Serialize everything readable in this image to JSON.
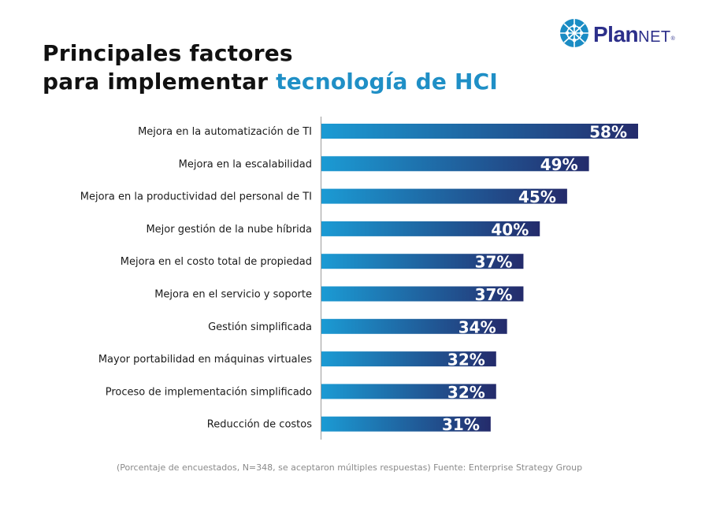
{
  "title": {
    "line1": "Principales factores",
    "line2_prefix": "para implementar ",
    "line2_accent": "tecnología de HCI"
  },
  "logo": {
    "plan": "Plan",
    "net": "NET",
    "reg": "®"
  },
  "colors": {
    "title_accent": "#1f8fc6",
    "bar_gradient_start": "#1b9bd4",
    "bar_gradient_end": "#242b6b",
    "logo_primary": "#2c2f8a",
    "logo_globe": "#1a8cc4"
  },
  "chart_data": {
    "type": "bar",
    "orientation": "horizontal",
    "categories": [
      "Mejora en la automatización de TI",
      "Mejora en la escalabilidad",
      "Mejora en la productividad del personal de TI",
      "Mejor gestión de la nube híbrida",
      "Mejora en el costo total de propiedad",
      "Mejora en el servicio y soporte",
      "Gestión simplificada",
      "Mayor portabilidad en máquinas virtuales",
      "Proceso de implementación simplificado",
      "Reducción de costos"
    ],
    "values": [
      58,
      49,
      45,
      40,
      37,
      37,
      34,
      32,
      32,
      31
    ],
    "value_labels": [
      "58%",
      "49%",
      "45%",
      "40%",
      "37%",
      "37%",
      "34%",
      "32%",
      "32%",
      "31%"
    ],
    "unit": "%",
    "xlim": [
      0,
      58
    ],
    "grid": false,
    "legend": "none"
  },
  "footnote": "(Porcentaje de encuestados, N=348, se aceptaron múltiples respuestas)  Fuente: Enterprise Strategy Group"
}
